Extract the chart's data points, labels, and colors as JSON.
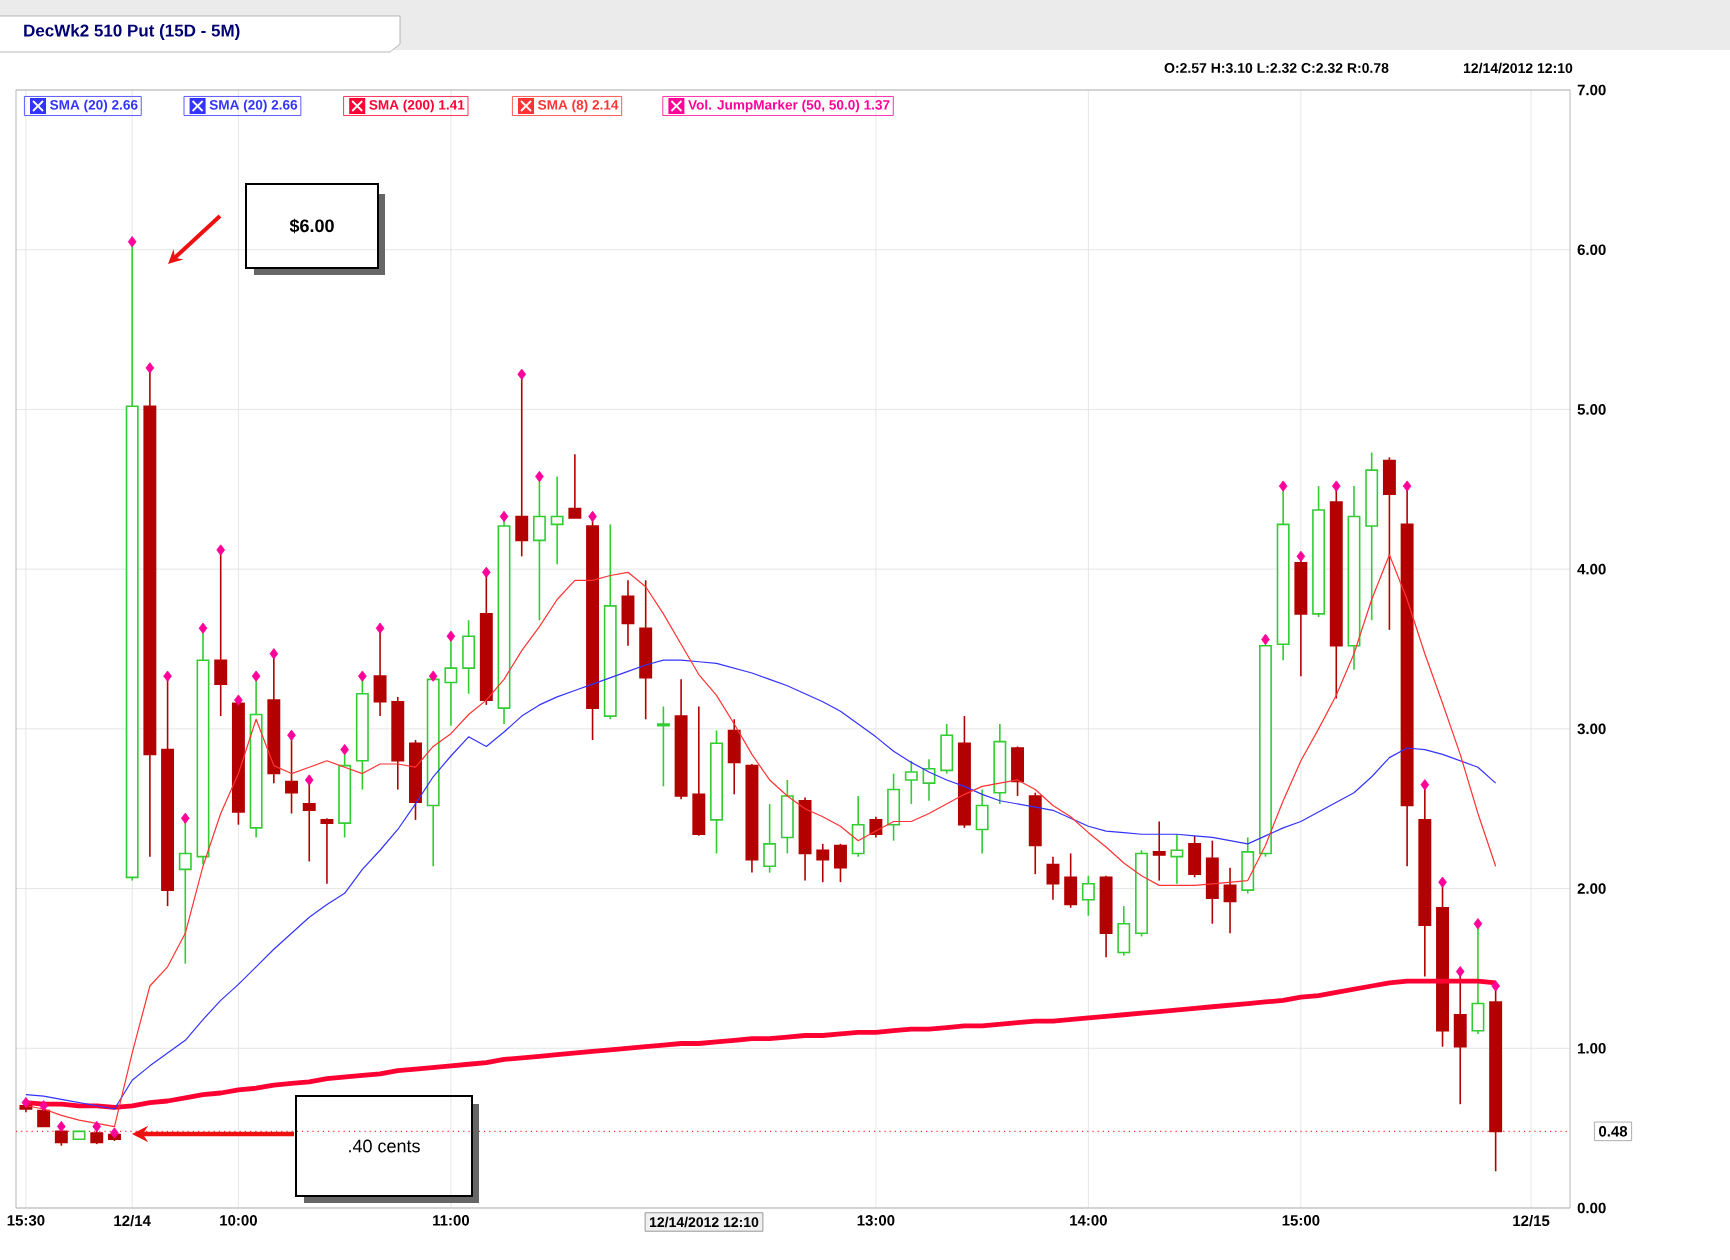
{
  "chart_data": {
    "type": "candlestick",
    "title": "DecWk2 510 Put (15D - 5M)",
    "categories": [
      "15:30",
      null,
      null,
      null,
      null,
      null,
      "12/14",
      null,
      null,
      null,
      null,
      null,
      "10:00",
      null,
      null,
      null,
      null,
      null,
      null,
      null,
      null,
      null,
      null,
      null,
      "11:00",
      null,
      null,
      null,
      null,
      null,
      null,
      null,
      null,
      null,
      null,
      null,
      null,
      null,
      null,
      null,
      null,
      null,
      null,
      null,
      null,
      null,
      null,
      null,
      "13:00",
      null,
      null,
      null,
      null,
      null,
      null,
      null,
      null,
      null,
      null,
      null,
      "14:00",
      null,
      null,
      null,
      null,
      null,
      null,
      null,
      null,
      null,
      null,
      null,
      "15:00",
      null,
      null,
      null,
      null,
      null,
      null,
      null,
      null,
      null,
      null,
      null,
      null,
      "12/15"
    ],
    "ohlc": [
      [
        0.64,
        0.66,
        0.6,
        0.62
      ],
      [
        0.61,
        0.64,
        0.51,
        0.51
      ],
      [
        0.48,
        0.51,
        0.39,
        0.41
      ],
      [
        0.43,
        0.48,
        0.43,
        0.48
      ],
      [
        0.47,
        0.51,
        0.4,
        0.41
      ],
      [
        0.46,
        0.47,
        0.42,
        0.43
      ],
      [
        2.07,
        6.05,
        2.05,
        5.02
      ],
      [
        5.02,
        5.26,
        2.2,
        2.84
      ],
      [
        2.87,
        3.33,
        1.89,
        1.99
      ],
      [
        2.12,
        2.44,
        1.53,
        2.22
      ],
      [
        2.2,
        3.63,
        2.15,
        3.43
      ],
      [
        3.43,
        4.12,
        3.08,
        3.28
      ],
      [
        3.16,
        3.18,
        2.4,
        2.48
      ],
      [
        2.38,
        3.33,
        2.32,
        3.09
      ],
      [
        3.18,
        3.47,
        2.66,
        2.72
      ],
      [
        2.67,
        2.96,
        2.47,
        2.6
      ],
      [
        2.53,
        2.68,
        2.17,
        2.49
      ],
      [
        2.43,
        2.44,
        2.03,
        2.41
      ],
      [
        2.41,
        2.87,
        2.32,
        2.77
      ],
      [
        2.8,
        3.33,
        2.62,
        3.22
      ],
      [
        3.33,
        3.63,
        3.08,
        3.17
      ],
      [
        3.17,
        3.2,
        2.62,
        2.8
      ],
      [
        2.91,
        2.93,
        2.43,
        2.54
      ],
      [
        2.52,
        3.33,
        2.14,
        3.31
      ],
      [
        3.29,
        3.58,
        3.02,
        3.38
      ],
      [
        3.38,
        3.68,
        3.22,
        3.58
      ],
      [
        3.72,
        3.98,
        3.15,
        3.18
      ],
      [
        3.13,
        4.33,
        3.03,
        4.27
      ],
      [
        4.33,
        5.22,
        4.08,
        4.18
      ],
      [
        4.18,
        4.58,
        3.68,
        4.33
      ],
      [
        4.28,
        4.58,
        4.03,
        4.33
      ],
      [
        4.38,
        4.72,
        4.32,
        4.32
      ],
      [
        4.27,
        4.33,
        2.93,
        3.13
      ],
      [
        3.08,
        4.28,
        3.06,
        3.77
      ],
      [
        3.83,
        3.93,
        3.52,
        3.66
      ],
      [
        3.63,
        3.93,
        3.06,
        3.32
      ],
      [
        3.02,
        3.14,
        2.64,
        3.03
      ],
      [
        3.08,
        3.31,
        2.56,
        2.58
      ],
      [
        2.59,
        3.14,
        2.33,
        2.34
      ],
      [
        2.43,
        2.99,
        2.22,
        2.91
      ],
      [
        2.99,
        3.06,
        2.59,
        2.79
      ],
      [
        2.77,
        2.78,
        2.1,
        2.18
      ],
      [
        2.14,
        2.53,
        2.1,
        2.28
      ],
      [
        2.32,
        2.68,
        2.22,
        2.58
      ],
      [
        2.55,
        2.57,
        2.05,
        2.22
      ],
      [
        2.24,
        2.28,
        2.04,
        2.18
      ],
      [
        2.27,
        2.28,
        2.04,
        2.13
      ],
      [
        2.22,
        2.58,
        2.2,
        2.4
      ],
      [
        2.43,
        2.45,
        2.32,
        2.34
      ],
      [
        2.4,
        2.72,
        2.3,
        2.62
      ],
      [
        2.68,
        2.8,
        2.53,
        2.73
      ],
      [
        2.66,
        2.81,
        2.55,
        2.75
      ],
      [
        2.74,
        3.03,
        2.72,
        2.96
      ],
      [
        2.91,
        3.08,
        2.38,
        2.4
      ],
      [
        2.37,
        2.62,
        2.22,
        2.52
      ],
      [
        2.6,
        3.03,
        2.53,
        2.92
      ],
      [
        2.88,
        2.89,
        2.58,
        2.67
      ],
      [
        2.58,
        2.6,
        2.09,
        2.27
      ],
      [
        2.15,
        2.2,
        1.93,
        2.03
      ],
      [
        2.07,
        2.22,
        1.88,
        1.9
      ],
      [
        1.93,
        2.08,
        1.83,
        2.03
      ],
      [
        2.07,
        2.08,
        1.57,
        1.72
      ],
      [
        1.6,
        1.89,
        1.58,
        1.78
      ],
      [
        1.72,
        2.24,
        1.7,
        2.22
      ],
      [
        2.23,
        2.42,
        2.05,
        2.21
      ],
      [
        2.2,
        2.34,
        2.03,
        2.24
      ],
      [
        2.28,
        2.33,
        2.07,
        2.09
      ],
      [
        2.19,
        2.3,
        1.78,
        1.94
      ],
      [
        2.02,
        2.13,
        1.72,
        1.92
      ],
      [
        1.99,
        2.32,
        1.97,
        2.23
      ],
      [
        2.22,
        3.56,
        2.2,
        3.52
      ],
      [
        3.53,
        4.52,
        3.43,
        4.28
      ],
      [
        4.04,
        4.08,
        3.33,
        3.72
      ],
      [
        3.72,
        4.52,
        3.7,
        4.37
      ],
      [
        4.42,
        4.52,
        3.19,
        3.52
      ],
      [
        3.52,
        4.52,
        3.37,
        4.33
      ],
      [
        4.27,
        4.73,
        3.68,
        4.62
      ],
      [
        4.68,
        4.7,
        3.62,
        4.47
      ],
      [
        4.28,
        4.52,
        2.14,
        2.52
      ],
      [
        2.43,
        2.65,
        1.45,
        1.77
      ],
      [
        1.88,
        2.04,
        1.01,
        1.11
      ],
      [
        1.21,
        1.48,
        0.65,
        1.01
      ],
      [
        1.11,
        1.78,
        1.09,
        1.28
      ],
      [
        1.29,
        1.39,
        0.23,
        0.48
      ],
      null,
      null
    ],
    "colors": [
      "#b30000",
      "#b30000",
      "#b30000",
      "#33cc33",
      "#b30000",
      "#b30000",
      "#33cc33",
      "#b30000",
      "#b30000",
      "#33cc33",
      "#33cc33",
      "#b30000",
      "#b30000",
      "#33cc33",
      "#b30000",
      "#b30000",
      "#b30000",
      "#b30000",
      "#33cc33",
      "#33cc33",
      "#b30000",
      "#b30000",
      "#b30000",
      "#33cc33",
      "#33cc33",
      "#33cc33",
      "#b30000",
      "#33cc33",
      "#b30000",
      "#33cc33",
      "#33cc33",
      "#b30000",
      "#b30000",
      "#33cc33",
      "#b30000",
      "#b30000",
      "#33cc33",
      "#b30000",
      "#b30000",
      "#33cc33",
      "#b30000",
      "#b30000",
      "#33cc33",
      "#33cc33",
      "#b30000",
      "#b30000",
      "#b30000",
      "#33cc33",
      "#b30000",
      "#33cc33",
      "#33cc33",
      "#33cc33",
      "#33cc33",
      "#b30000",
      "#33cc33",
      "#33cc33",
      "#b30000",
      "#b30000",
      "#b30000",
      "#b30000",
      "#33cc33",
      "#b30000",
      "#33cc33",
      "#33cc33",
      "#b30000",
      "#33cc33",
      "#b30000",
      "#b30000",
      "#b30000",
      "#33cc33",
      "#33cc33",
      "#33cc33",
      "#b30000",
      "#33cc33",
      "#b30000",
      "#33cc33",
      "#33cc33",
      "#b30000",
      "#b30000",
      "#b30000",
      "#b30000",
      "#b30000",
      "#33cc33",
      "#b30000",
      null,
      null
    ],
    "series": [
      {
        "name": "SMA (20) 2.66",
        "type": "line",
        "color": "#3333ff",
        "values": [
          0.71,
          0.7,
          0.68,
          0.66,
          0.64,
          0.62,
          0.8,
          0.89,
          0.97,
          1.05,
          1.18,
          1.3,
          1.4,
          1.51,
          1.62,
          1.72,
          1.82,
          1.9,
          1.97,
          2.12,
          2.24,
          2.37,
          2.53,
          2.7,
          2.83,
          2.95,
          2.89,
          2.98,
          3.08,
          3.15,
          3.2,
          3.24,
          3.28,
          3.32,
          3.36,
          3.4,
          3.43,
          3.43,
          3.42,
          3.41,
          3.38,
          3.35,
          3.31,
          3.27,
          3.22,
          3.17,
          3.11,
          3.03,
          2.95,
          2.86,
          2.79,
          2.73,
          2.68,
          2.64,
          2.59,
          2.55,
          2.53,
          2.51,
          2.49,
          2.44,
          2.39,
          2.36,
          2.35,
          2.34,
          2.34,
          2.34,
          2.33,
          2.32,
          2.3,
          2.28,
          2.33,
          2.38,
          2.42,
          2.48,
          2.54,
          2.6,
          2.7,
          2.82,
          2.88,
          2.87,
          2.84,
          2.8,
          2.76,
          2.66,
          null,
          null
        ]
      },
      {
        "name": "SMA (200) 1.41",
        "type": "line",
        "color": "#ff0033",
        "values": [
          0.66,
          0.65,
          0.65,
          0.64,
          0.64,
          0.63,
          0.64,
          0.66,
          0.67,
          0.69,
          0.71,
          0.72,
          0.74,
          0.75,
          0.77,
          0.78,
          0.79,
          0.81,
          0.82,
          0.83,
          0.84,
          0.86,
          0.87,
          0.88,
          0.89,
          0.9,
          0.91,
          0.93,
          0.94,
          0.95,
          0.96,
          0.97,
          0.98,
          0.99,
          1.0,
          1.01,
          1.02,
          1.03,
          1.03,
          1.04,
          1.05,
          1.06,
          1.06,
          1.07,
          1.08,
          1.08,
          1.09,
          1.1,
          1.1,
          1.11,
          1.12,
          1.12,
          1.13,
          1.14,
          1.14,
          1.15,
          1.16,
          1.17,
          1.17,
          1.18,
          1.19,
          1.2,
          1.21,
          1.22,
          1.23,
          1.24,
          1.25,
          1.26,
          1.27,
          1.28,
          1.29,
          1.3,
          1.32,
          1.33,
          1.35,
          1.37,
          1.39,
          1.41,
          1.42,
          1.42,
          1.42,
          1.42,
          1.42,
          1.41,
          null,
          null
        ]
      },
      {
        "name": "SMA (8) 2.14",
        "type": "line",
        "color": "#ff3333",
        "values": [
          0.64,
          0.62,
          0.58,
          0.55,
          0.53,
          0.51,
          0.97,
          1.39,
          1.51,
          1.72,
          2.14,
          2.47,
          2.72,
          3.06,
          2.77,
          2.72,
          2.76,
          2.8,
          2.76,
          2.72,
          2.78,
          2.78,
          2.76,
          2.89,
          2.97,
          3.09,
          3.18,
          3.31,
          3.49,
          3.64,
          3.81,
          3.93,
          3.93,
          3.96,
          3.98,
          3.89,
          3.72,
          3.53,
          3.34,
          3.21,
          3.03,
          2.84,
          2.68,
          2.58,
          2.5,
          2.45,
          2.39,
          2.3,
          2.36,
          2.42,
          2.42,
          2.47,
          2.53,
          2.59,
          2.64,
          2.66,
          2.68,
          2.62,
          2.52,
          2.45,
          2.35,
          2.26,
          2.16,
          2.08,
          2.02,
          2.02,
          2.02,
          2.03,
          2.04,
          2.05,
          2.27,
          2.55,
          2.8,
          3.0,
          3.21,
          3.47,
          3.81,
          4.09,
          3.81,
          3.47,
          3.16,
          2.84,
          2.47,
          2.14,
          null,
          null
        ]
      },
      {
        "name": "Vol. JumpMarker (50, 50.0) 1.37",
        "type": "scatter",
        "marker": "diamond",
        "color": "#ff0099",
        "values": [
          0.66,
          0.64,
          0.51,
          null,
          0.51,
          0.47,
          6.05,
          5.26,
          3.33,
          2.44,
          3.63,
          4.12,
          3.18,
          3.33,
          3.47,
          2.96,
          2.68,
          null,
          2.87,
          3.33,
          3.63,
          null,
          null,
          3.33,
          3.58,
          null,
          3.98,
          4.33,
          5.22,
          4.58,
          null,
          null,
          4.33,
          null,
          null,
          null,
          null,
          null,
          null,
          null,
          null,
          null,
          null,
          null,
          null,
          null,
          null,
          null,
          null,
          null,
          null,
          null,
          null,
          null,
          null,
          null,
          null,
          null,
          null,
          null,
          null,
          null,
          null,
          null,
          null,
          null,
          null,
          null,
          null,
          null,
          3.56,
          4.52,
          4.08,
          null,
          4.52,
          null,
          null,
          null,
          4.52,
          2.65,
          2.04,
          1.48,
          1.78,
          1.39,
          null,
          null
        ]
      }
    ],
    "ylim": [
      0,
      7
    ],
    "yticks": [
      {
        "value": 0,
        "label": "0.00"
      },
      {
        "value": 1,
        "label": "1.00"
      },
      {
        "value": 2,
        "label": "2.00"
      },
      {
        "value": 3,
        "label": "3.00"
      },
      {
        "value": 4,
        "label": "4.00"
      },
      {
        "value": 5,
        "label": "5.00"
      },
      {
        "value": 6,
        "label": "6.00"
      },
      {
        "value": 7,
        "label": "7.00"
      }
    ],
    "grid": true,
    "legend": "top left",
    "ref_lines": [
      {
        "axis": "y",
        "value": 0.48,
        "label": "0.48",
        "color": "#ff3333",
        "line_style": "dotted"
      }
    ],
    "annotations": [
      "$6.00",
      ".40 cents",
      "O:2.57 H:3.10 L:2.32 C:2.32 R:0.78",
      "12/14/2012 12:10",
      "12/14/2012 12:10",
      "SMA (20) 2.66"
    ]
  }
}
